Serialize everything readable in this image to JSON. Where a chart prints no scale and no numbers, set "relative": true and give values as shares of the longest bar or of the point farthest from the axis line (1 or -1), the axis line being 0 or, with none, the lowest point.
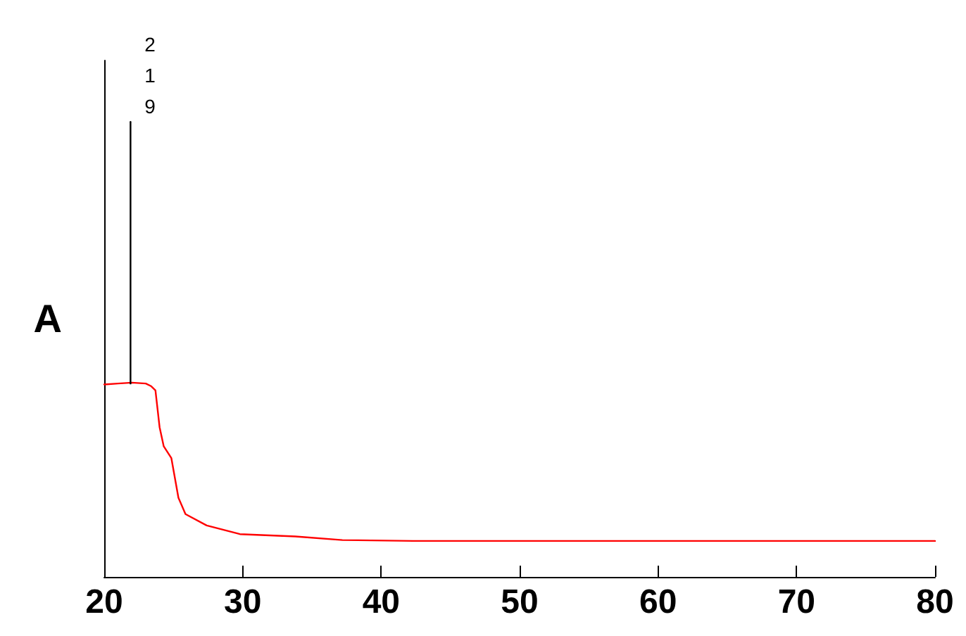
{
  "chart_data": {
    "type": "line",
    "ylabel": "A",
    "relative": true,
    "series": [
      {
        "color": "#ff0000",
        "x": [
          20,
          21,
          22,
          23,
          23.4,
          23.7,
          24.0,
          24.3,
          24.85,
          25.36,
          25.87,
          27.4,
          29.8,
          33.8,
          37.2,
          42.3,
          49.1,
          60,
          70,
          80
        ],
        "values": [
          0.423,
          0.425,
          0.427,
          0.425,
          0.419,
          0.41,
          0.329,
          0.287,
          0.261,
          0.174,
          0.138,
          0.113,
          0.094,
          0.089,
          0.081,
          0.079,
          0.079,
          0.079,
          0.079,
          0.079
        ]
      },
      {
        "color": "#000000",
        "x": [
          21.9,
          21.9
        ],
        "values": [
          0.425,
          1
        ]
      }
    ],
    "annotations": [
      {
        "text": "219",
        "x": 21.9,
        "y": 1
      }
    ],
    "xlim": [
      20,
      80
    ],
    "xticks": [
      20,
      30,
      40,
      50,
      60,
      70,
      80
    ],
    "grid": false,
    "marker": "none",
    "line_style": "solid"
  }
}
